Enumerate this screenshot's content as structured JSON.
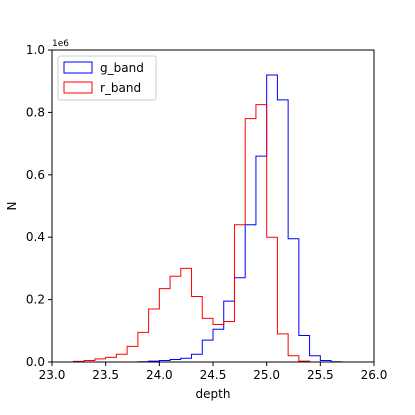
{
  "chart_data": {
    "type": "histogram",
    "title": "",
    "xlabel": "depth",
    "ylabel": "N",
    "y_multiplier": "1e6",
    "xlim": [
      23.0,
      26.0
    ],
    "ylim": [
      0,
      1.0
    ],
    "x_ticks": [
      "23.0",
      "23.5",
      "24.0",
      "24.5",
      "25.0",
      "25.5",
      "26.0"
    ],
    "y_ticks": [
      "0.0",
      "0.2",
      "0.4",
      "0.6",
      "0.8",
      "1.0"
    ],
    "x_tick_values": [
      23.0,
      23.5,
      24.0,
      24.5,
      25.0,
      25.5,
      26.0
    ],
    "y_tick_values": [
      0.0,
      0.2,
      0.4,
      0.6,
      0.8,
      1.0
    ],
    "grid": false,
    "legend_position": "top-left",
    "bins": [
      23.2,
      23.3,
      23.4,
      23.5,
      23.6,
      23.7,
      23.8,
      23.9,
      24.0,
      24.1,
      24.2,
      24.3,
      24.4,
      24.5,
      24.6,
      24.7,
      24.8,
      24.9,
      25.0,
      25.1,
      25.2,
      25.3,
      25.4,
      25.5,
      25.6,
      25.7
    ],
    "series": [
      {
        "name": "g_band",
        "color": "#0000ff",
        "values": [
          0.0,
          0.0,
          0.0,
          0.0,
          0.0,
          0.0,
          0.001,
          0.003,
          0.005,
          0.008,
          0.012,
          0.025,
          0.07,
          0.105,
          0.195,
          0.27,
          0.44,
          0.66,
          0.92,
          0.84,
          0.395,
          0.085,
          0.02,
          0.005,
          0.001
        ]
      },
      {
        "name": "r_band",
        "color": "#ff0000",
        "values": [
          0.002,
          0.005,
          0.01,
          0.015,
          0.025,
          0.05,
          0.095,
          0.17,
          0.235,
          0.275,
          0.3,
          0.21,
          0.14,
          0.12,
          0.13,
          0.44,
          0.78,
          0.825,
          0.4,
          0.09,
          0.02,
          0.003,
          0.0,
          0.0,
          0.0
        ]
      }
    ]
  }
}
